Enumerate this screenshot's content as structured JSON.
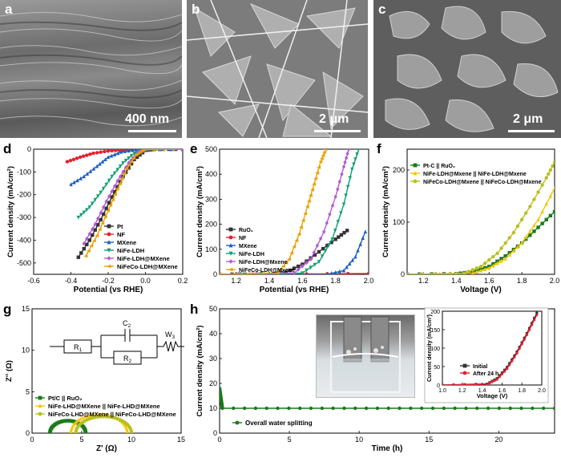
{
  "panels": {
    "a": {
      "label": "a",
      "scale": "400 nm"
    },
    "b": {
      "label": "b",
      "scale": "2 μm"
    },
    "c": {
      "label": "c",
      "scale": "2 μm"
    },
    "d": {
      "label": "d"
    },
    "e": {
      "label": "e"
    },
    "f": {
      "label": "f"
    },
    "g": {
      "label": "g",
      "circuit": {
        "c": "C",
        "c_sub": "2",
        "r1": "R",
        "r1_sub": "1",
        "r2": "R",
        "r2_sub": "2",
        "w": "W",
        "w_sub": "3"
      }
    },
    "h": {
      "label": "h"
    }
  },
  "chart_data": [
    {
      "id": "d",
      "type": "line",
      "xlabel": "Potential (vs RHE)",
      "ylabel": "Current density (mA/cm²)",
      "xlim": [
        -0.6,
        0.2
      ],
      "ylim": [
        -550,
        0
      ],
      "xticks": [
        "-0.6",
        "-0.4",
        "-0.2",
        "0.0",
        "0.2"
      ],
      "yticks": [
        "0",
        "-100",
        "-200",
        "-300",
        "-400",
        "-500"
      ],
      "legend_position": "bottom-right",
      "series": [
        {
          "name": "Pt",
          "color": "#333333",
          "marker": "square",
          "x": [
            -0.36,
            -0.3,
            -0.24,
            -0.18,
            -0.12,
            -0.06,
            0.0,
            0.05,
            0.2
          ],
          "y": [
            -475,
            -400,
            -310,
            -210,
            -120,
            -45,
            -5,
            0,
            0
          ]
        },
        {
          "name": "NF",
          "color": "#e5202e",
          "marker": "circle",
          "x": [
            -0.42,
            -0.35,
            -0.28,
            -0.2,
            -0.12,
            -0.05,
            0.2
          ],
          "y": [
            -55,
            -35,
            -18,
            -8,
            -3,
            -1,
            0
          ]
        },
        {
          "name": "MXene",
          "color": "#1f5fbf",
          "marker": "triangle",
          "x": [
            -0.4,
            -0.33,
            -0.26,
            -0.2,
            -0.13,
            -0.05,
            0.2
          ],
          "y": [
            -155,
            -120,
            -75,
            -35,
            -12,
            -2,
            0
          ]
        },
        {
          "name": "NiFe-LDH",
          "color": "#10a070",
          "marker": "triangle-down",
          "x": [
            -0.36,
            -0.3,
            -0.24,
            -0.18,
            -0.12,
            -0.06,
            0.0,
            0.2
          ],
          "y": [
            -300,
            -255,
            -190,
            -120,
            -60,
            -18,
            -2,
            0
          ]
        },
        {
          "name": "NiFe-LDH@MXene",
          "color": "#b45ad6",
          "marker": "diamond",
          "x": [
            -0.33,
            -0.27,
            -0.21,
            -0.15,
            -0.09,
            -0.04,
            0.0,
            0.2
          ],
          "y": [
            -415,
            -330,
            -230,
            -140,
            -60,
            -15,
            -2,
            0
          ]
        },
        {
          "name": "NiFeCo-LDH@MXene",
          "color": "#e8a200",
          "marker": "triangle-left",
          "x": [
            -0.32,
            -0.26,
            -0.2,
            -0.15,
            -0.1,
            -0.05,
            -0.01,
            0.2
          ],
          "y": [
            -470,
            -380,
            -270,
            -175,
            -85,
            -25,
            -3,
            0
          ]
        }
      ]
    },
    {
      "id": "e",
      "type": "line",
      "xlabel": "Potential (vs RHE)",
      "ylabel": "Current density (mA/cm²)",
      "xlim": [
        1.1,
        2.0
      ],
      "ylim": [
        0,
        500
      ],
      "xticks": [
        "1.2",
        "1.4",
        "1.6",
        "1.8",
        "2.0"
      ],
      "yticks": [
        "0",
        "100",
        "200",
        "300",
        "400",
        "500"
      ],
      "legend_position": "bottom-left",
      "series": [
        {
          "name": "RuO₂",
          "color": "#333333",
          "marker": "square",
          "x": [
            1.1,
            1.4,
            1.5,
            1.6,
            1.7,
            1.8,
            1.87
          ],
          "y": [
            0,
            0,
            8,
            40,
            90,
            140,
            175
          ]
        },
        {
          "name": "NF",
          "color": "#e5202e",
          "marker": "circle",
          "x": [
            1.1,
            1.5,
            2.0
          ],
          "y": [
            0,
            1,
            3
          ]
        },
        {
          "name": "MXene",
          "color": "#1f5fbf",
          "marker": "triangle",
          "x": [
            1.1,
            1.75,
            1.85,
            1.92,
            1.98
          ],
          "y": [
            0,
            0,
            15,
            70,
            170
          ]
        },
        {
          "name": "NiFe-LDH",
          "color": "#10a070",
          "marker": "triangle-down",
          "x": [
            1.1,
            1.6,
            1.7,
            1.78,
            1.85,
            1.9,
            1.94
          ],
          "y": [
            0,
            5,
            50,
            140,
            280,
            420,
            500
          ]
        },
        {
          "name": "NiFe-LDH@Mxene",
          "color": "#b45ad6",
          "marker": "diamond",
          "x": [
            1.1,
            1.55,
            1.65,
            1.73,
            1.8,
            1.85,
            1.88
          ],
          "y": [
            0,
            5,
            60,
            170,
            310,
            430,
            500
          ]
        },
        {
          "name": "NiFeCo-LDH@Mxene",
          "color": "#e8a200",
          "marker": "triangle-left",
          "x": [
            1.1,
            1.45,
            1.52,
            1.58,
            1.63,
            1.67,
            1.71,
            1.74
          ],
          "y": [
            0,
            5,
            60,
            160,
            270,
            360,
            450,
            500
          ]
        }
      ]
    },
    {
      "id": "f",
      "type": "line",
      "xlabel": "Voltage (V)",
      "ylabel": "Current density (mA/cm²)",
      "xlim": [
        1.1,
        2.0
      ],
      "ylim": [
        0,
        240
      ],
      "xticks": [
        "1.2",
        "1.4",
        "1.6",
        "1.8",
        "2.0"
      ],
      "yticks": [
        "0",
        "100",
        "200"
      ],
      "legend_position": "top-left",
      "series": [
        {
          "name": "Pt-C || RuO₂",
          "color": "#1a7a1a",
          "marker": "square",
          "x": [
            1.1,
            1.4,
            1.5,
            1.6,
            1.7,
            1.8,
            1.9,
            2.0
          ],
          "y": [
            0,
            1,
            5,
            15,
            35,
            60,
            90,
            120
          ]
        },
        {
          "name": "NiFe-LDH@Mxene || NiFe-LDH@Mxene",
          "color": "#f5c500",
          "marker": "triangle",
          "x": [
            1.1,
            1.5,
            1.6,
            1.7,
            1.8,
            1.9,
            2.0
          ],
          "y": [
            0,
            2,
            12,
            30,
            60,
            105,
            165
          ]
        },
        {
          "name": "NiFeCo-LDH@Mxene || NiFeCo-LDH@Mxene",
          "color": "#b8c020",
          "marker": "circle",
          "x": [
            1.1,
            1.45,
            1.55,
            1.65,
            1.75,
            1.85,
            1.95,
            2.0
          ],
          "y": [
            0,
            2,
            15,
            40,
            80,
            130,
            185,
            215
          ]
        }
      ]
    },
    {
      "id": "g",
      "type": "scatter",
      "xlabel": "Z' (Ω)",
      "ylabel": "Z'' (Ω)",
      "xlim": [
        0,
        15
      ],
      "ylim": [
        0,
        15
      ],
      "xticks": [
        "0",
        "5",
        "10",
        "15"
      ],
      "yticks": [
        "0",
        "5",
        "10",
        "15"
      ],
      "legend_position": "bottom-left",
      "series": [
        {
          "name": "Pt/C || RuO₂",
          "color": "#1a7a1a",
          "marker": "square",
          "arc": [
            1.8,
            5.4,
            1.5
          ]
        },
        {
          "name": "NiFe-LHD@MXene || NiFe-LHD@MXene",
          "color": "#f5c500",
          "marker": "triangle",
          "arc": [
            3.9,
            9.6,
            2.3
          ]
        },
        {
          "name": "NiFeCo-LHD@MXene || NiFeCo-LHD@MXene",
          "color": "#b8c020",
          "marker": "circle",
          "arc": [
            4.4,
            10.0,
            2.0
          ]
        }
      ]
    },
    {
      "id": "h",
      "type": "line",
      "xlabel": "Time (h)",
      "ylabel": "Current density (mA/cm²)",
      "xlim": [
        0,
        24
      ],
      "ylim": [
        0,
        50
      ],
      "xticks": [
        "0",
        "5",
        "10",
        "15",
        "20"
      ],
      "yticks": [
        "0",
        "10",
        "20",
        "30",
        "40",
        "50"
      ],
      "legend_position": "bottom-left",
      "series": [
        {
          "name": "Overall water splitting",
          "color": "#1a7a1a",
          "marker": "circle",
          "x": [
            0,
            0.2,
            24
          ],
          "y": [
            18,
            10,
            10
          ]
        }
      ]
    },
    {
      "id": "h-inset",
      "type": "line",
      "xlabel": "Voltage (V)",
      "ylabel": "Current density (mA/cm²)",
      "xlim": [
        1.0,
        2.0
      ],
      "ylim": [
        0,
        200
      ],
      "xticks": [
        "1.0",
        "1.2",
        "1.4",
        "1.6",
        "1.8",
        "2.0"
      ],
      "yticks": [
        "0",
        "50",
        "100",
        "150",
        "200"
      ],
      "legend_position": "bottom-left",
      "series": [
        {
          "name": "Initial",
          "color": "#333333",
          "marker": "square",
          "x": [
            1.0,
            1.45,
            1.55,
            1.65,
            1.75,
            1.85,
            1.95
          ],
          "y": [
            0,
            3,
            18,
            48,
            90,
            140,
            195
          ]
        },
        {
          "name": "After 24 h",
          "color": "#e5202e",
          "marker": "circle",
          "x": [
            1.0,
            1.45,
            1.55,
            1.65,
            1.75,
            1.85,
            1.95
          ],
          "y": [
            0,
            2,
            15,
            44,
            86,
            136,
            190
          ]
        }
      ]
    }
  ]
}
